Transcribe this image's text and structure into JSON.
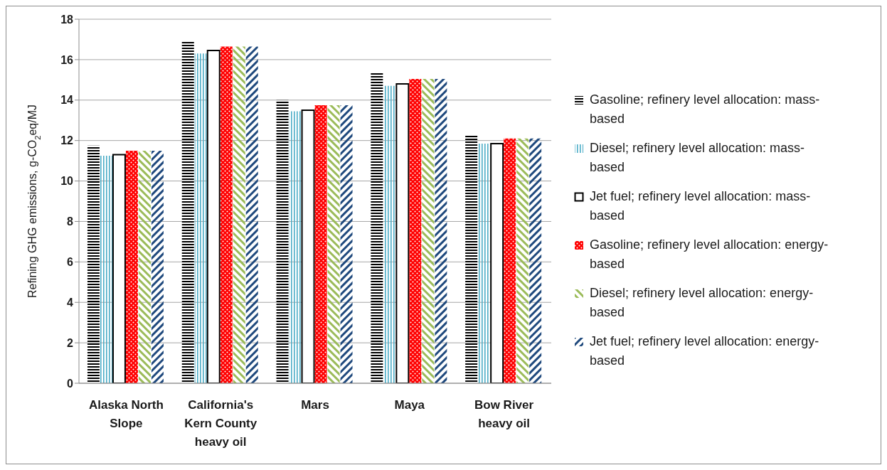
{
  "chart_data": {
    "type": "bar",
    "ylabel": "Refining GHG emissions, g-CO$_{2}$eq/MJ",
    "categories": [
      "Alaska North Slope",
      "California's Kern County heavy oil",
      "Mars",
      "Maya",
      "Bow River heavy oil"
    ],
    "series": [
      {
        "name": "Gasoline; refinery level allocation: mass-based",
        "color": "#000000",
        "values": [
          11.75,
          16.9,
          14.0,
          15.4,
          12.3
        ]
      },
      {
        "name": "Diesel; refinery level allocation: mass-based",
        "color": "#4bacc6",
        "values": [
          11.25,
          16.3,
          13.45,
          14.7,
          11.85
        ]
      },
      {
        "name": "Jet fuel; refinery level allocation: mass-based",
        "color": "#000000",
        "values": [
          11.3,
          16.45,
          13.5,
          14.8,
          11.85
        ]
      },
      {
        "name": "Gasoline; refinery level allocation: energy-based",
        "color": "#ff0000",
        "values": [
          11.5,
          16.65,
          13.75,
          15.05,
          12.1
        ]
      },
      {
        "name": "Diesel; refinery level allocation: energy-based",
        "color": "#9bbb59",
        "values": [
          11.5,
          16.65,
          13.75,
          15.05,
          12.1
        ]
      },
      {
        "name": "Jet fuel; refinery level allocation: energy-based",
        "color": "#1f497d",
        "values": [
          11.5,
          16.65,
          13.75,
          15.05,
          12.1
        ]
      }
    ],
    "ylim": [
      0,
      18
    ],
    "yticks": [
      0,
      2,
      4,
      6,
      8,
      10,
      12,
      14,
      16,
      18
    ],
    "grid": "y",
    "legend": "right"
  }
}
